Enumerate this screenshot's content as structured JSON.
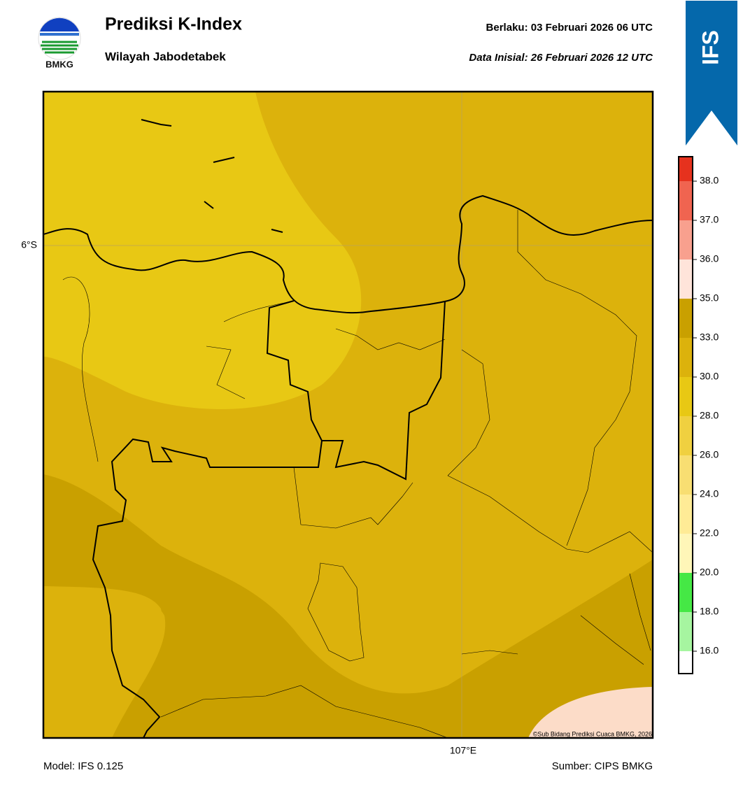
{
  "header": {
    "logo_text": "BMKG",
    "title": "Prediksi K-Index",
    "subtitle": "Wilayah Jabodetabek",
    "valid": "Berlaku:  03 Februari 2026 06 UTC",
    "init": "Data Inisial:  26 Februari 2026 12 UTC",
    "badge": "IFS"
  },
  "map": {
    "lat_label": "6°S",
    "lon_label": "107°E",
    "credit": "©Sub Bidang Prediksi Cuaca BMKG, 2026"
  },
  "colorbar": {
    "ticks": [
      "16.0",
      "18.0",
      "20.0",
      "22.0",
      "24.0",
      "26.0",
      "28.0",
      "30.0",
      "33.0",
      "35.0",
      "36.0",
      "37.0",
      "38.0"
    ],
    "colors": [
      "#ffffff",
      "#a6f5a0",
      "#45e845",
      "#fff6b8",
      "#ffeb96",
      "#f8de72",
      "#f0d040",
      "#e8c814",
      "#dcb20c",
      "#c9a000",
      "#ffe4da",
      "#f8a08e",
      "#f06450",
      "#e6321e"
    ]
  },
  "footer": {
    "model": "Model: IFS 0.125",
    "source": "Sumber: CIPS BMKG"
  }
}
